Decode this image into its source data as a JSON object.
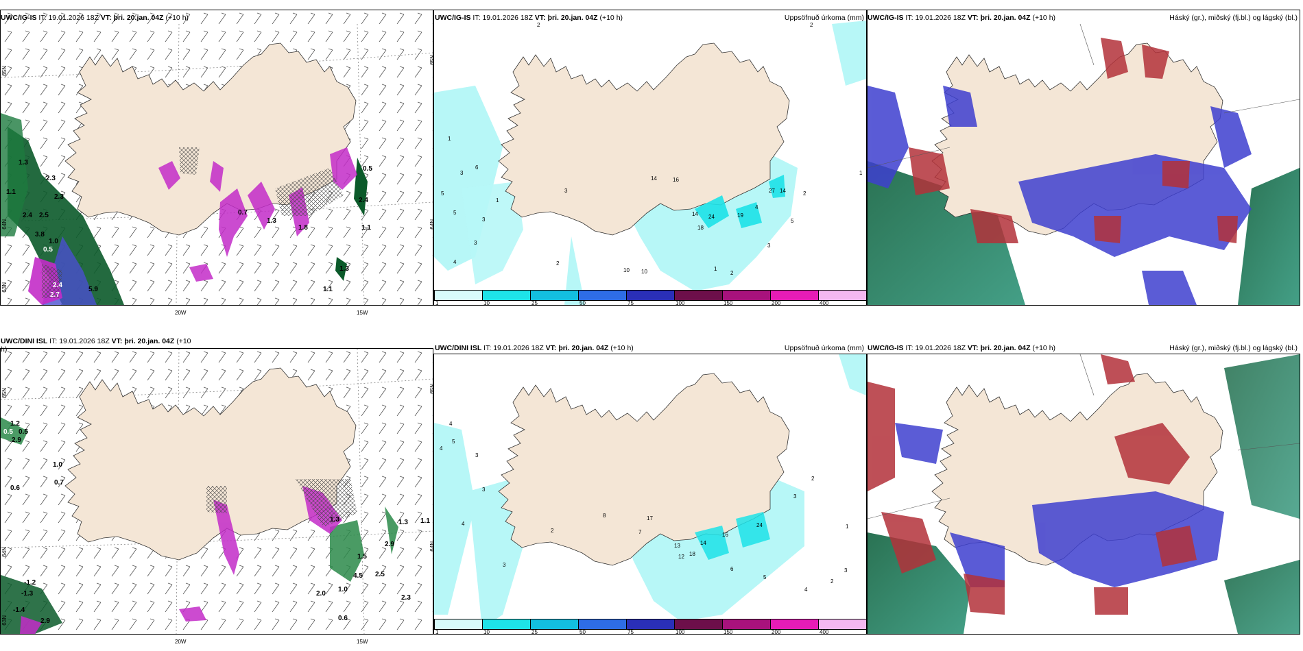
{
  "panels": {
    "tl": {
      "model": "UWC/IG-IS",
      "it_label": "IT:",
      "it": "19.01.2026 18Z",
      "vt_label": "VT:",
      "vt": "þri. 20.jan. 04Z",
      "lead": "(+10 h)",
      "axis": {
        "lat_a": "65N",
        "lat_b": "64N",
        "lat_c": "63N",
        "lon_a": "20W",
        "lon_b": "15W"
      },
      "values": [
        "1.3",
        "1.1",
        "2.3",
        "2.3",
        "2.4",
        "2.5",
        "3.8",
        "1.0",
        "0.5",
        "2.4",
        "2.7",
        "5.9",
        "0.5",
        "2.4",
        "1.1",
        "1.3",
        "1.1",
        "0.7",
        "1.3",
        "1.8"
      ]
    },
    "tm": {
      "model": "UWC/IG-IS",
      "it_label": "IT:",
      "it": "19.01.2026 18Z",
      "vt_label": "VT:",
      "vt": "þri. 20.jan. 04Z",
      "lead": "(+10 h)",
      "right_title": "Uppsöfnuð úrkoma (mm)",
      "axis": {
        "lat_a": "65N",
        "lat_b": "64N"
      },
      "values": [
        "2",
        "1",
        "3",
        "5",
        "5",
        "4",
        "3",
        "1",
        "6",
        "3",
        "3",
        "2",
        "14",
        "16",
        "14",
        "24",
        "18",
        "19",
        "27",
        "14",
        "2",
        "1",
        "2",
        "10",
        "10",
        "1",
        "2",
        "3",
        "4",
        "5"
      ]
    },
    "tr": {
      "model": "UWC/IG-IS",
      "it_label": "IT:",
      "it": "19.01.2026 18Z",
      "vt_label": "VT:",
      "vt": "þri. 20.jan. 04Z",
      "lead": "(+10 h)",
      "right_title": "Háský (gr.), miðský (fj.bl.) og lágský (bl.)"
    },
    "bl": {
      "model": "UWC/DINI ISL",
      "it_label": "IT:",
      "it": "19.01.2026 18Z",
      "vt_label": "VT:",
      "vt": "þri. 20.jan. 04Z",
      "lead": "(+10",
      "lead_tail": "h)",
      "axis": {
        "lat_a": "65N",
        "lat_b": "64N",
        "lat_c": "63N",
        "lon_a": "20W",
        "lon_b": "15W"
      },
      "values": [
        "1.2",
        "0.5",
        "0.5",
        "2.9",
        "1.0",
        "0.7",
        "0.6",
        "1.3",
        "1.5",
        "4.5",
        "2.5",
        "2.9",
        "1.3",
        "1.1",
        "2.0",
        "1.0",
        "2.3",
        "0.6",
        "-1.2",
        "-1.3",
        "-1.4",
        "2.9"
      ]
    },
    "bm": {
      "model": "UWC/DINI ISL",
      "it_label": "IT:",
      "it": "19.01.2026 18Z",
      "vt_label": "VT:",
      "vt": "þri. 20.jan. 04Z",
      "lead": "(+10 h)",
      "right_title": "Uppsöfnuð úrkoma (mm)",
      "axis": {
        "lat_a": "65N",
        "lat_b": "64N"
      },
      "values": [
        "4",
        "5",
        "4",
        "3",
        "3",
        "4",
        "2",
        "3",
        "8",
        "17",
        "7",
        "14",
        "18",
        "16",
        "24",
        "13",
        "12",
        "6",
        "5",
        "3",
        "2",
        "1",
        "2",
        "3",
        "4"
      ]
    },
    "br": {
      "model": "UWC/IG-IS",
      "it_label": "IT:",
      "it": "19.01.2026 18Z",
      "vt_label": "VT:",
      "vt": "þri. 20.jan. 04Z",
      "lead": "(+10 h)",
      "right_title": "Háský (gr.), miðský (fj.bl.) og lágský (bl.)"
    }
  },
  "colorbar": {
    "ticks": [
      "1",
      "10",
      "25",
      "50",
      "75",
      "100",
      "150",
      "200",
      "400"
    ],
    "colors": [
      "#d8fbfb",
      "#1ee3e8",
      "#13bfe0",
      "#2e6de6",
      "#2a2fb8",
      "#6d0f4a",
      "#a8127c",
      "#e61cb6",
      "#f4b8f1"
    ]
  },
  "colors": {
    "land": "#f4e6d6",
    "precip_light": "#b7f7f7",
    "snow": "#c32cc8",
    "green_dark": "#0b5a2a",
    "cloud_blue": "#3e3fcf",
    "cloud_red": "#b3313a"
  }
}
